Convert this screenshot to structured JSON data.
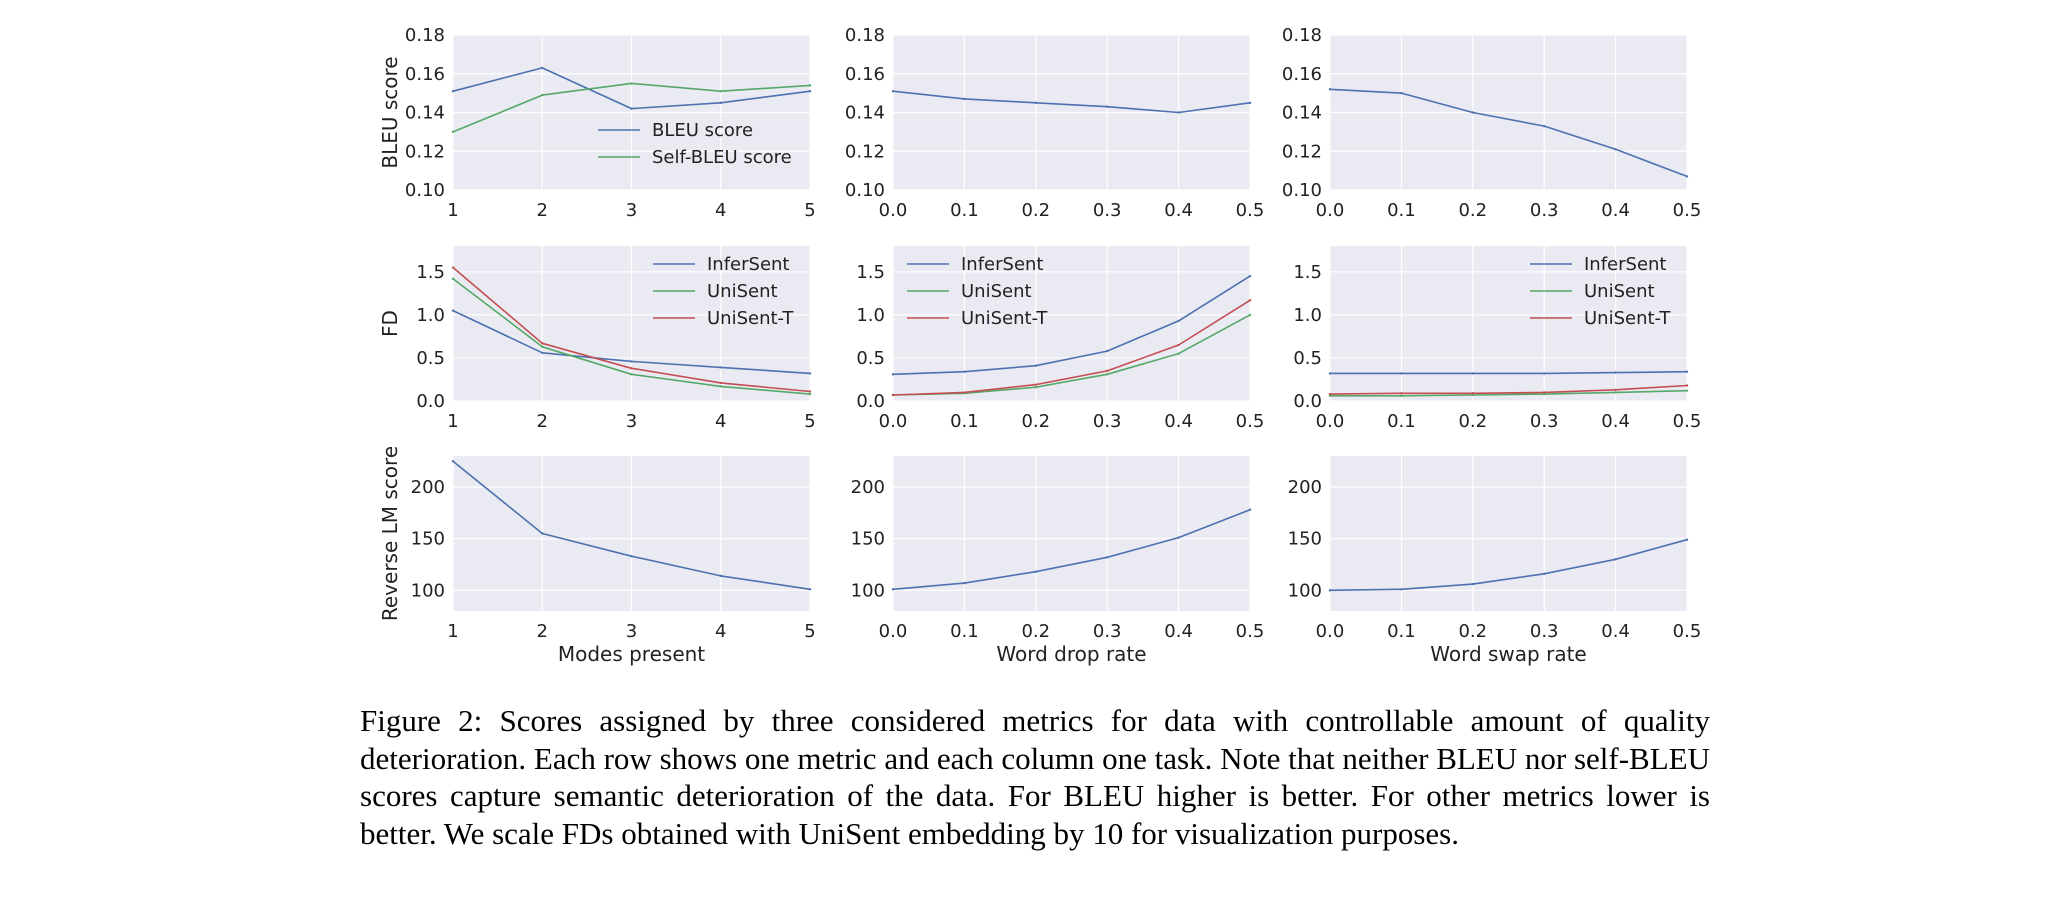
{
  "caption": "Figure 2: Scores assigned by three considered metrics for data with controllable amount of quality deterioration. Each row shows one metric and each column one task. Note that neither BLEU nor self-BLEU scores capture semantic deterioration of the data. For BLEU higher is better. For other metrics lower is better.  We scale FDs obtained with UniSent embedding by 10 for visualization purposes.",
  "colors": {
    "blue": "#4c72b0",
    "green": "#55a868",
    "red": "#c44e52",
    "plot_bg": "#eaeaf2",
    "grid": "#ffffff"
  },
  "chart_data": [
    {
      "type": "line",
      "ylabel": "BLEU score",
      "xlabel": "",
      "x": [
        1,
        2,
        3,
        4,
        5
      ],
      "xticks": [
        "1",
        "2",
        "3",
        "4",
        "5"
      ],
      "ylim": [
        0.1,
        0.18
      ],
      "yticks": [
        "0.10",
        "0.12",
        "0.14",
        "0.16",
        "0.18"
      ],
      "grid": true,
      "legend": "lower-center",
      "series": [
        {
          "name": "BLEU score",
          "color": "blue",
          "values": [
            0.151,
            0.163,
            0.142,
            0.145,
            0.151
          ]
        },
        {
          "name": "Self-BLEU score",
          "color": "green",
          "values": [
            0.13,
            0.149,
            0.155,
            0.151,
            0.154
          ]
        }
      ]
    },
    {
      "type": "line",
      "ylabel": "",
      "xlabel": "",
      "x": [
        0,
        0.1,
        0.2,
        0.3,
        0.4,
        0.5
      ],
      "xticks": [
        "0.0",
        "0.1",
        "0.2",
        "0.3",
        "0.4",
        "0.5"
      ],
      "ylim": [
        0.1,
        0.18
      ],
      "yticks": [
        "0.10",
        "0.12",
        "0.14",
        "0.16",
        "0.18"
      ],
      "grid": true,
      "series": [
        {
          "color": "blue",
          "values": [
            0.151,
            0.147,
            0.145,
            0.143,
            0.14,
            0.145
          ]
        }
      ]
    },
    {
      "type": "line",
      "ylabel": "",
      "xlabel": "",
      "x": [
        0,
        0.1,
        0.2,
        0.3,
        0.4,
        0.5
      ],
      "xticks": [
        "0.0",
        "0.1",
        "0.2",
        "0.3",
        "0.4",
        "0.5"
      ],
      "ylim": [
        0.1,
        0.18
      ],
      "yticks": [
        "0.10",
        "0.12",
        "0.14",
        "0.16",
        "0.18"
      ],
      "grid": true,
      "series": [
        {
          "color": "blue",
          "values": [
            0.152,
            0.15,
            0.14,
            0.133,
            0.121,
            0.107
          ]
        }
      ]
    },
    {
      "type": "line",
      "ylabel": "FD",
      "xlabel": "",
      "x": [
        1,
        2,
        3,
        4,
        5
      ],
      "xticks": [
        "1",
        "2",
        "3",
        "4",
        "5"
      ],
      "ylim": [
        0.0,
        1.8
      ],
      "yticks": [
        "0.0",
        "0.5",
        "1.0",
        "1.5"
      ],
      "grid": true,
      "legend": "top-right",
      "series": [
        {
          "name": "InferSent",
          "color": "blue",
          "values": [
            1.05,
            0.56,
            0.46,
            0.39,
            0.32
          ]
        },
        {
          "name": "UniSent",
          "color": "green",
          "values": [
            1.42,
            0.63,
            0.31,
            0.17,
            0.08
          ]
        },
        {
          "name": "UniSent-T",
          "color": "red",
          "values": [
            1.55,
            0.67,
            0.38,
            0.21,
            0.11
          ]
        }
      ]
    },
    {
      "type": "line",
      "ylabel": "",
      "xlabel": "",
      "x": [
        0,
        0.1,
        0.2,
        0.3,
        0.4,
        0.5
      ],
      "xticks": [
        "0.0",
        "0.1",
        "0.2",
        "0.3",
        "0.4",
        "0.5"
      ],
      "ylim": [
        0.0,
        1.8
      ],
      "yticks": [
        "0.0",
        "0.5",
        "1.0",
        "1.5"
      ],
      "grid": true,
      "legend": "top-left",
      "series": [
        {
          "name": "InferSent",
          "color": "blue",
          "values": [
            0.31,
            0.34,
            0.41,
            0.58,
            0.93,
            1.45
          ]
        },
        {
          "name": "UniSent",
          "color": "green",
          "values": [
            0.07,
            0.09,
            0.16,
            0.31,
            0.55,
            1.0
          ]
        },
        {
          "name": "UniSent-T",
          "color": "red",
          "values": [
            0.07,
            0.1,
            0.19,
            0.35,
            0.65,
            1.17
          ]
        }
      ]
    },
    {
      "type": "line",
      "ylabel": "",
      "xlabel": "",
      "x": [
        0,
        0.1,
        0.2,
        0.3,
        0.4,
        0.5
      ],
      "xticks": [
        "0.0",
        "0.1",
        "0.2",
        "0.3",
        "0.4",
        "0.5"
      ],
      "ylim": [
        0.0,
        1.8
      ],
      "yticks": [
        "0.0",
        "0.5",
        "1.0",
        "1.5"
      ],
      "grid": true,
      "legend": "top-right",
      "series": [
        {
          "name": "InferSent",
          "color": "blue",
          "values": [
            0.32,
            0.32,
            0.32,
            0.32,
            0.33,
            0.34
          ]
        },
        {
          "name": "UniSent",
          "color": "green",
          "values": [
            0.06,
            0.06,
            0.07,
            0.08,
            0.1,
            0.12
          ]
        },
        {
          "name": "UniSent-T",
          "color": "red",
          "values": [
            0.08,
            0.09,
            0.09,
            0.1,
            0.13,
            0.18
          ]
        }
      ]
    },
    {
      "type": "line",
      "ylabel": "Reverse LM score",
      "xlabel": "Modes present",
      "x": [
        1,
        2,
        3,
        4,
        5
      ],
      "xticks": [
        "1",
        "2",
        "3",
        "4",
        "5"
      ],
      "ylim": [
        80,
        230
      ],
      "yticks": [
        "100",
        "150",
        "200"
      ],
      "grid": true,
      "series": [
        {
          "color": "blue",
          "values": [
            225,
            155,
            133,
            114,
            101
          ]
        }
      ]
    },
    {
      "type": "line",
      "ylabel": "",
      "xlabel": "Word drop rate",
      "x": [
        0,
        0.1,
        0.2,
        0.3,
        0.4,
        0.5
      ],
      "xticks": [
        "0.0",
        "0.1",
        "0.2",
        "0.3",
        "0.4",
        "0.5"
      ],
      "ylim": [
        80,
        230
      ],
      "yticks": [
        "100",
        "150",
        "200"
      ],
      "grid": true,
      "series": [
        {
          "color": "blue",
          "values": [
            101,
            107,
            118,
            132,
            151,
            178
          ]
        }
      ]
    },
    {
      "type": "line",
      "ylabel": "",
      "xlabel": "Word swap rate",
      "x": [
        0,
        0.1,
        0.2,
        0.3,
        0.4,
        0.5
      ],
      "xticks": [
        "0.0",
        "0.1",
        "0.2",
        "0.3",
        "0.4",
        "0.5"
      ],
      "ylim": [
        80,
        230
      ],
      "yticks": [
        "100",
        "150",
        "200"
      ],
      "grid": true,
      "series": [
        {
          "color": "blue",
          "values": [
            100,
            101,
            106,
            116,
            130,
            149
          ]
        }
      ]
    }
  ]
}
